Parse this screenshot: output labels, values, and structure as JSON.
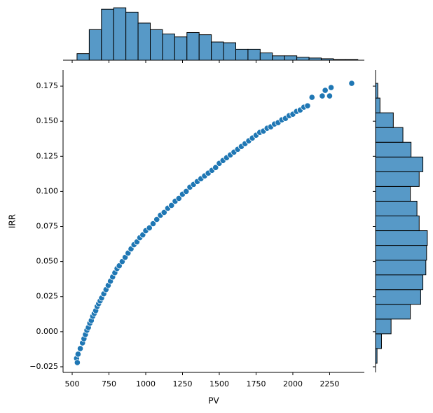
{
  "chart_data": [
    {
      "type": "scatter",
      "xlabel": "PV",
      "ylabel": "IRR",
      "color": "#1f77b4",
      "x": [
        530,
        535,
        540,
        555,
        570,
        580,
        590,
        600,
        610,
        620,
        630,
        640,
        650,
        660,
        670,
        680,
        690,
        700,
        715,
        730,
        745,
        760,
        775,
        790,
        805,
        820,
        840,
        860,
        880,
        900,
        920,
        940,
        960,
        980,
        1000,
        1025,
        1050,
        1075,
        1100,
        1125,
        1150,
        1175,
        1200,
        1225,
        1250,
        1275,
        1300,
        1325,
        1350,
        1375,
        1400,
        1425,
        1450,
        1475,
        1500,
        1525,
        1550,
        1575,
        1600,
        1625,
        1650,
        1675,
        1700,
        1725,
        1750,
        1775,
        1800,
        1825,
        1850,
        1875,
        1900,
        1925,
        1950,
        1975,
        2000,
        2025,
        2050,
        2075,
        2100,
        2130,
        2200,
        2220,
        2250,
        2260,
        2400
      ],
      "y": [
        -0.019,
        -0.022,
        -0.016,
        -0.012,
        -0.008,
        -0.005,
        -0.002,
        0.001,
        0.003,
        0.006,
        0.008,
        0.011,
        0.013,
        0.015,
        0.018,
        0.02,
        0.022,
        0.024,
        0.027,
        0.03,
        0.033,
        0.036,
        0.039,
        0.042,
        0.045,
        0.047,
        0.05,
        0.053,
        0.056,
        0.059,
        0.062,
        0.064,
        0.067,
        0.069,
        0.072,
        0.074,
        0.077,
        0.08,
        0.083,
        0.085,
        0.088,
        0.09,
        0.093,
        0.095,
        0.098,
        0.1,
        0.103,
        0.105,
        0.107,
        0.109,
        0.111,
        0.113,
        0.115,
        0.117,
        0.12,
        0.122,
        0.124,
        0.126,
        0.128,
        0.13,
        0.132,
        0.134,
        0.136,
        0.138,
        0.14,
        0.142,
        0.143,
        0.145,
        0.146,
        0.148,
        0.149,
        0.151,
        0.152,
        0.154,
        0.155,
        0.157,
        0.158,
        0.16,
        0.161,
        0.167,
        0.168,
        0.172,
        0.168,
        0.174,
        0.177
      ],
      "xlim": [
        438,
        2486
      ],
      "ylim": [
        -0.029,
        0.1865
      ],
      "xticks": [
        500,
        750,
        1000,
        1250,
        1500,
        1750,
        2000,
        2250
      ],
      "yticks": [
        {
          "value": -0.025,
          "label": "−0.025"
        },
        {
          "value": 0,
          "label": "0.000"
        },
        0.025,
        {
          "value": 0.05,
          "label": "0.050"
        },
        0.075,
        {
          "value": 0.1,
          "label": "0.100"
        },
        0.125,
        {
          "value": 0.15,
          "label": "0.150"
        },
        0.175
      ]
    },
    {
      "type": "histogram",
      "orientation": "vertical",
      "color": "#5799c7",
      "bins": [
        533,
        616,
        699,
        782,
        865,
        948,
        1031,
        1114,
        1197,
        1280,
        1363,
        1446,
        1529,
        1612,
        1695,
        1778,
        1861,
        1944,
        2027,
        2110,
        2193,
        2276,
        2359,
        2442
      ],
      "values": [
        9,
        42,
        70,
        72,
        66,
        51,
        42,
        36,
        32,
        38,
        35,
        25,
        24,
        15,
        15,
        10,
        6,
        6,
        4,
        3,
        2,
        1,
        1
      ],
      "ylim": [
        0,
        75
      ]
    },
    {
      "type": "histogram",
      "orientation": "horizontal",
      "color": "#5799c7",
      "bins": [
        -0.0225,
        -0.012,
        -0.0015,
        0.009,
        0.0195,
        0.03,
        0.0405,
        0.051,
        0.0615,
        0.072,
        0.0825,
        0.093,
        0.1035,
        0.114,
        0.1245,
        0.135,
        0.1455,
        0.156,
        0.1665,
        0.177
      ],
      "values": [
        2,
        8,
        21,
        47,
        61,
        64,
        68,
        69,
        70,
        59,
        56,
        47,
        59,
        64,
        48,
        37,
        24,
        6,
        3
      ],
      "xlim": [
        0,
        72
      ]
    }
  ]
}
